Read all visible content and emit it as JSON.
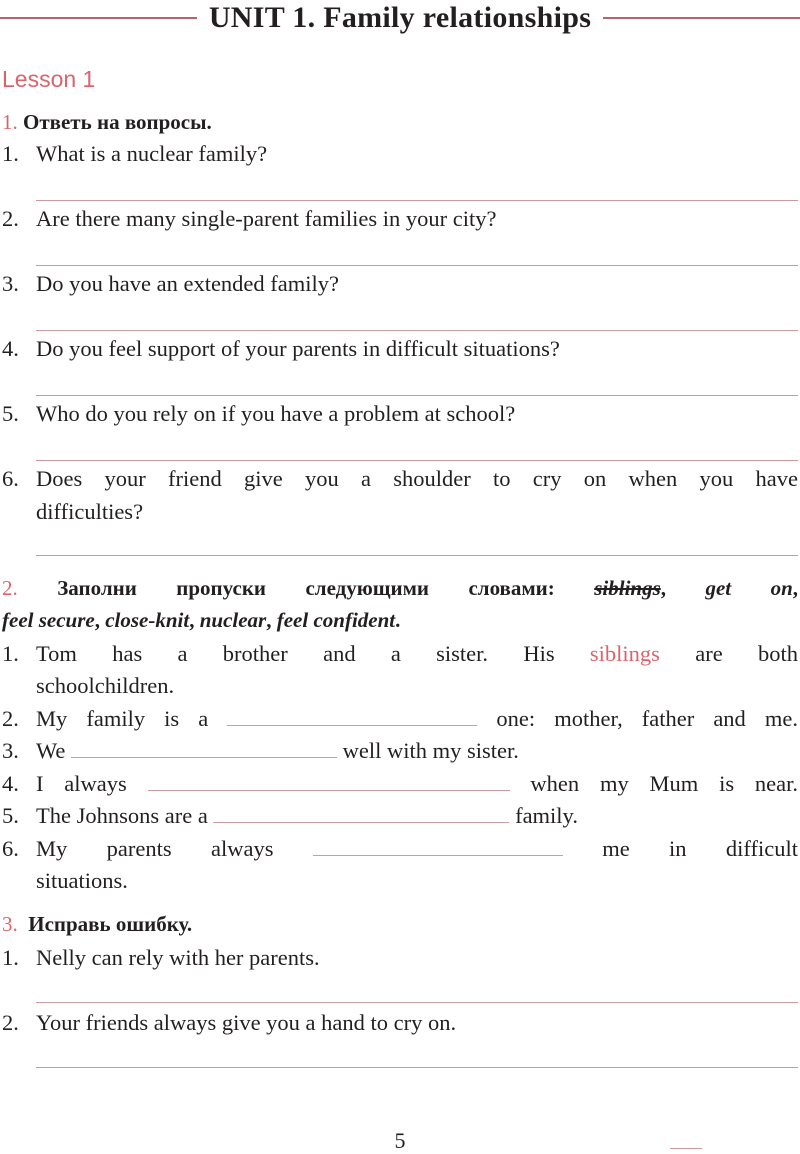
{
  "unit_title": "UNIT 1. Family relationships",
  "lesson": "Lesson 1",
  "colors": {
    "accent": "#d9646e",
    "rule": "#b5646c",
    "answer_line": "#c99ca1"
  },
  "ex1": {
    "num": "1.",
    "instruction": "Ответь на вопросы.",
    "items": [
      {
        "n": "1.",
        "text": "What is a nuclear family?"
      },
      {
        "n": "2.",
        "text": "Are there many single-parent families in your city?"
      },
      {
        "n": "3.",
        "text": "Do you have an extended family?"
      },
      {
        "n": "4.",
        "text": "Do you feel support of your parents in difficult situations?"
      },
      {
        "n": "5.",
        "text": "Who do you rely on if you have a problem at school?"
      },
      {
        "n": "6.",
        "text": "Does your friend give you a shoulder to cry on when you have",
        "text2": "difficulties?"
      }
    ]
  },
  "ex2": {
    "num": "2.",
    "instruction": "Заполни пропуски следующими словами:",
    "words": [
      "siblings",
      "get on",
      "feel secure",
      "close-knit",
      "nuclear",
      "feel confident"
    ],
    "items": [
      {
        "n": "1.",
        "before": "Tom has a brother and a sister. His",
        "answer": "siblings",
        "after": "are both",
        "line2": "schoolchildren."
      },
      {
        "n": "2.",
        "before": "My family is a",
        "after": "one: mother, father and me."
      },
      {
        "n": "3.",
        "before": "We",
        "after": "well with my sister."
      },
      {
        "n": "4.",
        "before": "I always",
        "after": "when my Mum is near."
      },
      {
        "n": "5.",
        "before": "The Johnsons are a",
        "after": "family."
      },
      {
        "n": "6.",
        "before": "My parents always",
        "after": "me in difficult",
        "line2": "situations."
      }
    ]
  },
  "ex3": {
    "num": "3.",
    "instruction": "Исправь ошибку.",
    "items": [
      {
        "n": "1.",
        "text": "Nelly can rely with her parents."
      },
      {
        "n": "2.",
        "text": "Your friends always give you a hand to cry on."
      }
    ]
  },
  "page_number": "5"
}
